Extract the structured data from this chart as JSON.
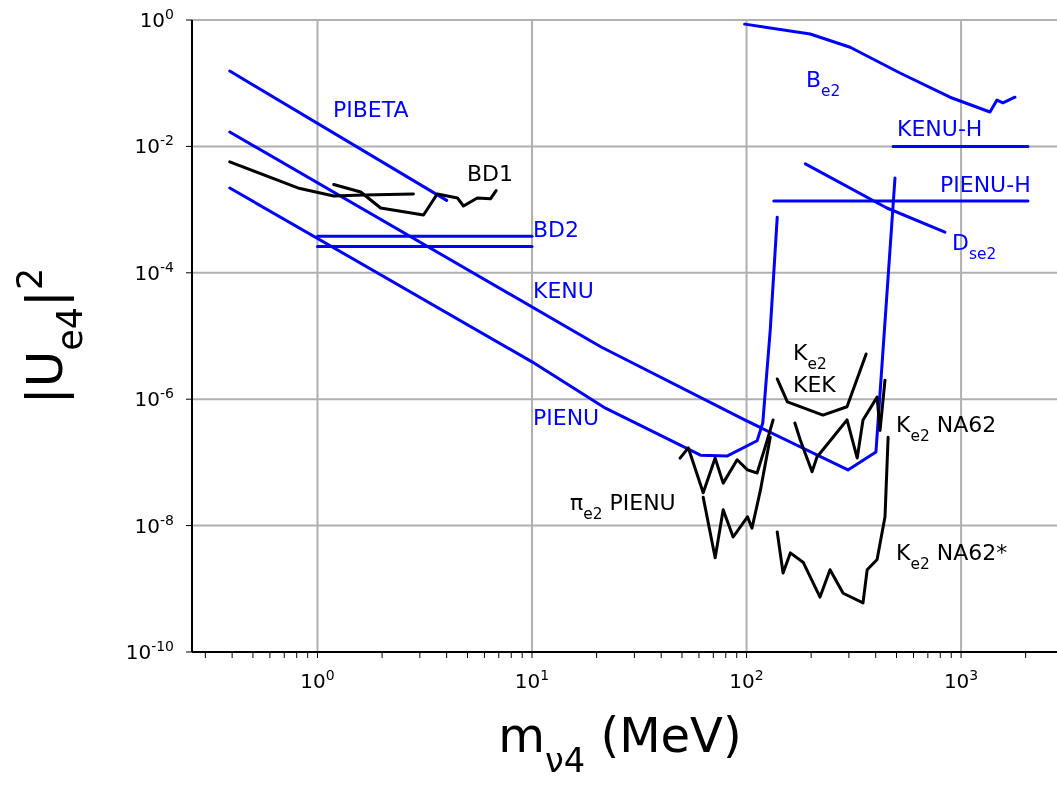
{
  "chart_data": {
    "type": "line",
    "xlabel": "m$_{ν4}$ (MeV)",
    "ylabel": "|U$_{e4}$|$^{2}$",
    "log": "xy",
    "grid": true,
    "marker": "none",
    "line_style": "solid",
    "xlim": [
      0.26,
      2800
    ],
    "ylim": [
      1e-10,
      1
    ],
    "xticks": [
      {
        "value": 0.3,
        "label": null
      },
      {
        "value": 0.4,
        "label": null
      },
      {
        "value": 0.5,
        "label": null
      },
      {
        "value": 0.6,
        "label": null
      },
      {
        "value": 0.7,
        "label": null
      },
      {
        "value": 0.8,
        "label": null
      },
      {
        "value": 0.9,
        "label": null
      },
      {
        "value": 1,
        "label": "10$^{0}$"
      },
      {
        "value": 2,
        "label": null
      },
      {
        "value": 3,
        "label": null
      },
      {
        "value": 4,
        "label": null
      },
      {
        "value": 5,
        "label": null
      },
      {
        "value": 6,
        "label": null
      },
      {
        "value": 7,
        "label": null
      },
      {
        "value": 8,
        "label": null
      },
      {
        "value": 9,
        "label": null
      },
      {
        "value": 10,
        "label": "10$^{1}$"
      },
      {
        "value": 20,
        "label": null
      },
      {
        "value": 30,
        "label": null
      },
      {
        "value": 40,
        "label": null
      },
      {
        "value": 50,
        "label": null
      },
      {
        "value": 60,
        "label": null
      },
      {
        "value": 70,
        "label": null
      },
      {
        "value": 80,
        "label": null
      },
      {
        "value": 90,
        "label": null
      },
      {
        "value": 100,
        "label": "10$^{2}$"
      },
      {
        "value": 200,
        "label": null
      },
      {
        "value": 300,
        "label": null
      },
      {
        "value": 400,
        "label": null
      },
      {
        "value": 500,
        "label": null
      },
      {
        "value": 600,
        "label": null
      },
      {
        "value": 700,
        "label": null
      },
      {
        "value": 800,
        "label": null
      },
      {
        "value": 900,
        "label": null
      },
      {
        "value": 1000,
        "label": "10$^{3}$"
      },
      {
        "value": 2000,
        "label": null
      }
    ],
    "yticks": [
      {
        "value": 1e-10,
        "label": "10$^{-10}$"
      },
      {
        "value": 1e-08,
        "label": "10$^{-8}$"
      },
      {
        "value": 1e-06,
        "label": "10$^{-6}$"
      },
      {
        "value": 0.0001,
        "label": "10$^{-4}$"
      },
      {
        "value": 0.01,
        "label": "10$^{-2}$"
      },
      {
        "value": 1,
        "label": "10$^{0}$"
      }
    ],
    "series": [
      {
        "name": "PIBETA",
        "color": "#0000ff",
        "x": [
          0.39,
          4.0
        ],
        "values": [
          0.156,
          0.0014
        ]
      },
      {
        "name": "KENU",
        "color": "#0000ff",
        "x": [
          0.39,
          21,
          98,
          297,
          401,
          492
        ],
        "values": [
          0.0169,
          6.7e-06,
          4.7e-07,
          7.6e-08,
          1.46e-07,
          0.00316
        ]
      },
      {
        "name": "PIENU",
        "color": "#0000ff",
        "x": [
          0.39,
          10,
          22,
          61,
          81,
          112,
          119,
          129,
          139
        ],
        "values": [
          0.0022,
          3.9e-06,
          7.2e-07,
          1.3e-07,
          1.26e-07,
          2.2e-07,
          4.2e-07,
          1.26e-05,
          0.00076
        ]
      },
      {
        "name": "BD2",
        "color": "#0000ff",
        "x": [
          1,
          10
        ],
        "values": [
          0.00038,
          0.00038
        ]
      },
      {
        "color": "#0000ff",
        "x": [
          1,
          10
        ],
        "values": [
          0.00026,
          0.00026
        ]
      },
      {
        "name": "BD1",
        "color": "#000000",
        "x": [
          1.19,
          1.59,
          1.97,
          3.12,
          3.62,
          4.49,
          4.79,
          5.56,
          6.4,
          6.8
        ],
        "values": [
          0.0025,
          0.0019,
          0.00106,
          0.00082,
          0.00177,
          0.00153,
          0.00114,
          0.00153,
          0.00148,
          0.002
        ]
      },
      {
        "color": "#000000",
        "x": [
          0.39,
          0.81,
          1.19,
          1.64,
          2.8
        ],
        "values": [
          0.0057,
          0.0022,
          0.00164,
          0.0017,
          0.00177
        ]
      },
      {
        "name": "B$_{e2}$",
        "color": "#0000ff",
        "x": [
          98,
          198,
          304,
          519,
          888,
          1364,
          1470,
          1567,
          1782
        ],
        "values": [
          0.86,
          0.6,
          0.37,
          0.145,
          0.06,
          0.035,
          0.054,
          0.049,
          0.06
        ]
      },
      {
        "name": "KENU-H",
        "color": "#0000ff",
        "x": [
          482,
          2050
        ],
        "values": [
          0.01,
          0.01
        ]
      },
      {
        "name": "PIENU-H",
        "color": "#0000ff",
        "x": [
          134,
          2050
        ],
        "values": [
          0.00137,
          0.00137
        ]
      },
      {
        "name": "D$_{se2}$",
        "color": "#0000ff",
        "x": [
          188,
          451,
          841
        ],
        "values": [
          0.0053,
          0.00106,
          0.00044
        ]
      },
      {
        "name": "K$_{e2}$ KEK",
        "color": "#000000",
        "x": [
          139,
          155,
          227,
          294,
          361
        ],
        "values": [
          2.09e-06,
          9.1e-07,
          5.6e-07,
          7.6e-07,
          5.2e-06
        ]
      },
      {
        "name": "K$_{e2}$ NA62",
        "color": "#000000",
        "x": [
          168,
          178,
          202,
          213,
          253,
          294,
          328,
          349,
          406,
          419,
          442
        ],
        "values": [
          4.2e-07,
          2.26e-07,
          7.1e-08,
          1.22e-07,
          2.5e-07,
          4.7e-07,
          1.17e-07,
          4.7e-07,
          1.08e-06,
          3.2e-07,
          2e-06
        ]
      },
      {
        "name": "K$_{e2}$ NA62*",
        "color": "#000000",
        "x": [
          139,
          148,
          160,
          184,
          220,
          245,
          282,
          349,
          365,
          406,
          442,
          457
        ],
        "values": [
          7.9e-09,
          1.78e-09,
          3.7e-09,
          2.6e-09,
          7.4e-10,
          2e-09,
          8.5e-10,
          6e-10,
          2e-09,
          2.9e-09,
          1.38e-08,
          2.5e-07
        ]
      },
      {
        "name": "π$_{e2}$ PIENU",
        "color": "#000000",
        "x": [
          49,
          53.5,
          62.8,
          71.4,
          77.8,
          90.4,
          101,
          112,
          125,
          133
        ],
        "values": [
          1.17e-07,
          1.7e-07,
          3.3e-08,
          1.17e-07,
          4.7e-08,
          1.1e-07,
          7.6e-08,
          6.8e-08,
          2.26e-07,
          4.7e-07
        ]
      },
      {
        "color": "#000000",
        "x": [
          62.8,
          71.4,
          77.8,
          86.6,
          101,
          106,
          116,
          129
        ],
        "values": [
          2.8e-08,
          3.1e-09,
          1.78e-08,
          6.6e-09,
          1.38e-08,
          9.1e-09,
          3.6e-08,
          2.5e-07
        ]
      }
    ]
  }
}
